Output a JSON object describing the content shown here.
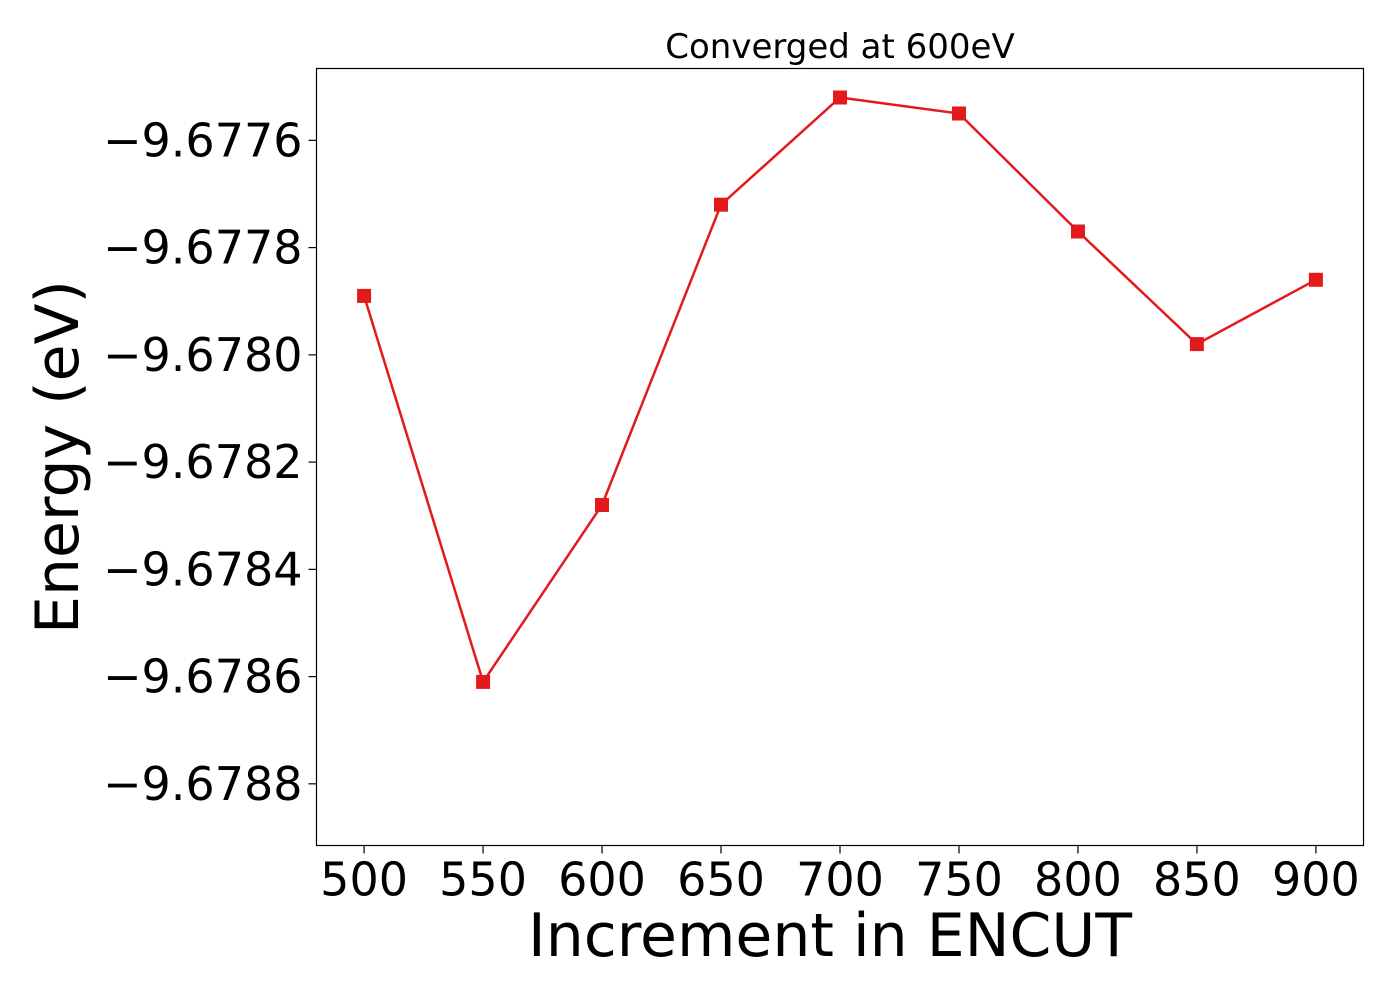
{
  "chart_data": {
    "type": "line",
    "title": "Converged at 600eV",
    "xlabel": "Increment in ENCUT",
    "ylabel": "Energy (eV)",
    "x": [
      500,
      550,
      600,
      650,
      700,
      750,
      800,
      850,
      900
    ],
    "series": [
      {
        "values": [
          -9.67789,
          -9.67861,
          -9.67828,
          -9.67772,
          -9.67752,
          -9.67755,
          -9.67777,
          -9.67798,
          -9.67786
        ],
        "color": "#e31a1c",
        "marker": "square"
      }
    ],
    "xticks": [
      500,
      550,
      600,
      650,
      700,
      750,
      800,
      850,
      900
    ],
    "xtick_labels": [
      "500",
      "550",
      "600",
      "650",
      "700",
      "750",
      "800",
      "850",
      "900"
    ],
    "yticks": [
      -9.6776,
      -9.6778,
      -9.678,
      -9.6782,
      -9.6784,
      -9.6786,
      -9.6788
    ],
    "ytick_labels": [
      "−9.6776",
      "−9.6778",
      "−9.6780",
      "−9.6782",
      "−9.6784",
      "−9.6786",
      "−9.6788"
    ],
    "xlim": [
      480,
      920
    ],
    "ylim": [
      -9.678915,
      -9.677466
    ],
    "grid": false,
    "legend": "none"
  }
}
